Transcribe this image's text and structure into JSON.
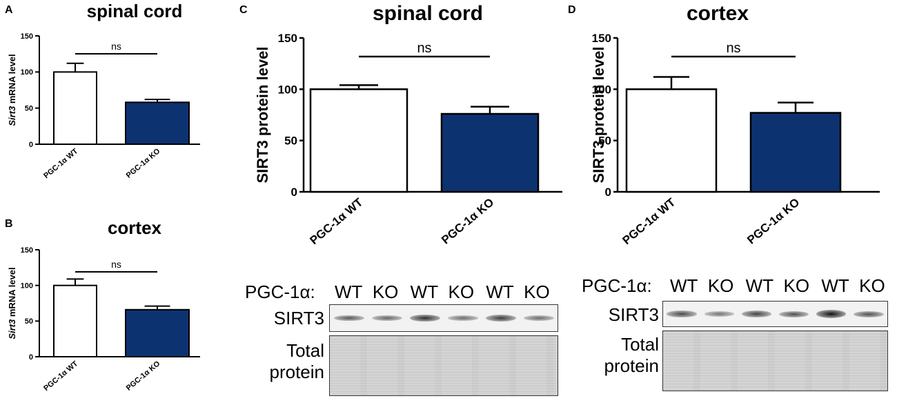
{
  "charts": [
    {
      "id": "A",
      "panel_label": "A",
      "title": "spinal cord",
      "ylabel_italic": "Sirt3",
      "ylabel_rest": " mRNA level",
      "sig": "ns"
    },
    {
      "id": "B",
      "panel_label": "B",
      "title": "cortex",
      "ylabel_italic": "Sirt3",
      "ylabel_rest": " mRNA level",
      "sig": "ns"
    },
    {
      "id": "C",
      "panel_label": "C",
      "title": "spinal cord",
      "ylabel_italic": "",
      "ylabel_rest": "SIRT3 protein level",
      "sig": "ns"
    },
    {
      "id": "D",
      "panel_label": "D",
      "title": "cortex",
      "ylabel_italic": "",
      "ylabel_rest": "SIRT3 protein level",
      "sig": "ns"
    }
  ],
  "chart_data": [
    {
      "type": "bar",
      "panel": "A",
      "title": "spinal cord",
      "ylabel": "Sirt3 mRNA level",
      "categories": [
        "PGC-1α WT",
        "PGC-1α KO"
      ],
      "values": [
        100,
        58
      ],
      "errors": [
        12,
        4
      ],
      "ylim": [
        0,
        150
      ],
      "yticks": [
        0,
        50,
        100,
        150
      ],
      "significance": "ns",
      "colors": [
        "#ffffff",
        "#0d3270"
      ]
    },
    {
      "type": "bar",
      "panel": "B",
      "title": "cortex",
      "ylabel": "Sirt3 mRNA level",
      "categories": [
        "PGC-1α WT",
        "PGC-1α KO"
      ],
      "values": [
        100,
        66
      ],
      "errors": [
        9,
        5
      ],
      "ylim": [
        0,
        150
      ],
      "yticks": [
        0,
        50,
        100,
        150
      ],
      "significance": "ns",
      "colors": [
        "#ffffff",
        "#0d3270"
      ]
    },
    {
      "type": "bar",
      "panel": "C",
      "title": "spinal cord",
      "ylabel": "SIRT3 protein level",
      "categories": [
        "PGC-1α WT",
        "PGC-1α KO"
      ],
      "values": [
        100,
        76
      ],
      "errors": [
        4,
        7
      ],
      "ylim": [
        0,
        150
      ],
      "yticks": [
        0,
        50,
        100,
        150
      ],
      "significance": "ns",
      "colors": [
        "#ffffff",
        "#0d3270"
      ]
    },
    {
      "type": "bar",
      "panel": "D",
      "title": "cortex",
      "ylabel": "SIRT3 protein level",
      "categories": [
        "PGC-1α WT",
        "PGC-1α KO"
      ],
      "values": [
        100,
        77
      ],
      "errors": [
        12,
        10
      ],
      "ylim": [
        0,
        150
      ],
      "yticks": [
        0,
        50,
        100,
        150
      ],
      "significance": "ns",
      "colors": [
        "#ffffff",
        "#0d3270"
      ]
    }
  ],
  "blots": [
    {
      "panel": "C",
      "header_label": "PGC-1α:",
      "lanes": [
        "WT",
        "KO",
        "WT",
        "KO",
        "WT",
        "KO"
      ],
      "band_label": "SIRT3",
      "total_label_line1": "Total",
      "total_label_line2": "protein",
      "band_intensity": [
        0.45,
        0.35,
        0.75,
        0.3,
        0.65,
        0.3
      ]
    },
    {
      "panel": "D",
      "header_label": "PGC-1α:",
      "lanes": [
        "WT",
        "KO",
        "WT",
        "KO",
        "WT",
        "KO"
      ],
      "band_label": "SIRT3",
      "total_label_line1": "Total",
      "total_label_line2": "protein",
      "band_intensity": [
        0.55,
        0.25,
        0.6,
        0.5,
        0.95,
        0.5
      ]
    }
  ]
}
